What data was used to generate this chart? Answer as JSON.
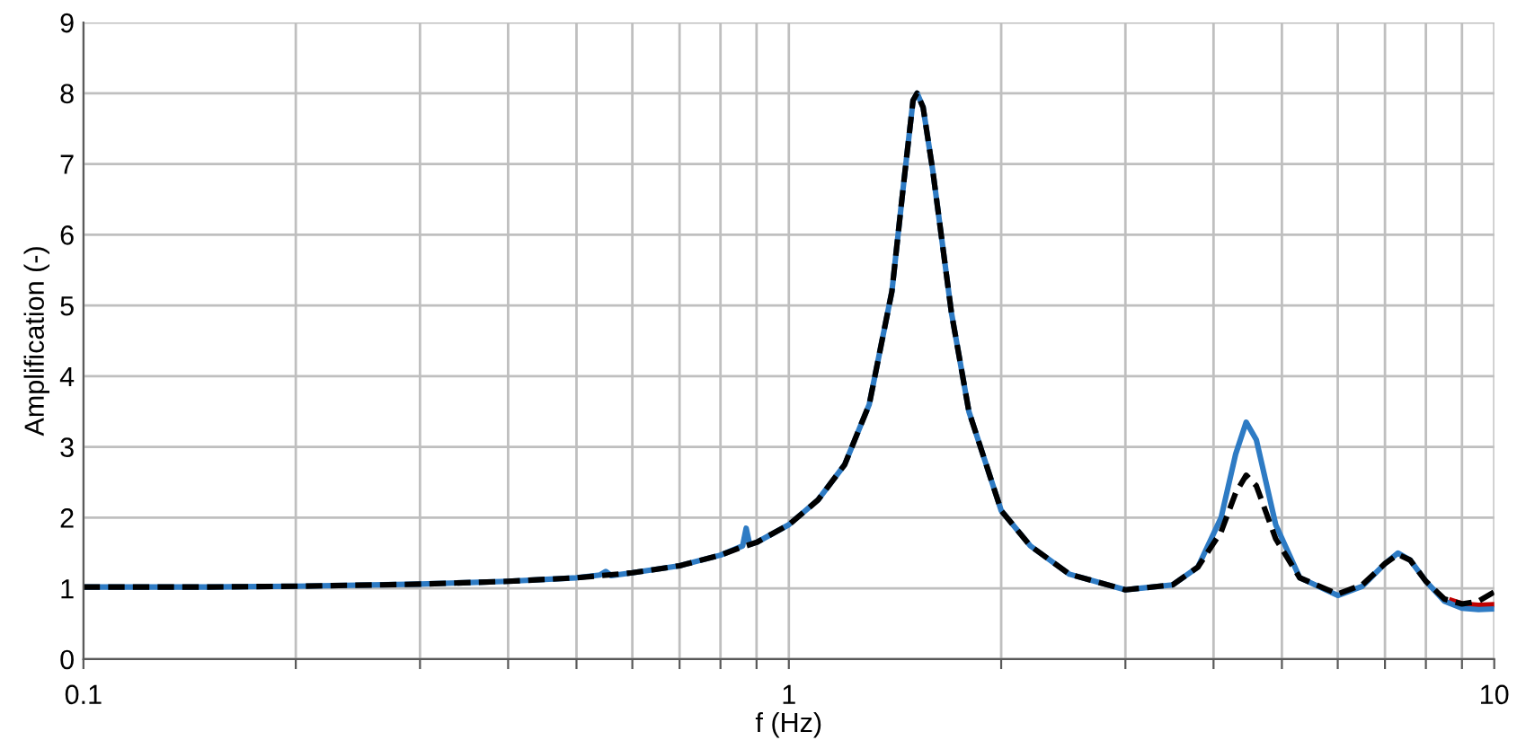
{
  "chart_data": {
    "type": "line",
    "xlabel": "f (Hz)",
    "ylabel": "Amplification (-)",
    "log": "x",
    "grid": true,
    "legend": false,
    "xlim": [
      0.1,
      10
    ],
    "xticks": [
      0.1,
      {
        "value": 0.2,
        "label": null
      },
      {
        "value": 0.3,
        "label": null
      },
      {
        "value": 0.4,
        "label": null
      },
      {
        "value": 0.5,
        "label": null
      },
      {
        "value": 0.6,
        "label": null
      },
      {
        "value": 0.7,
        "label": null
      },
      {
        "value": 0.8,
        "label": null
      },
      {
        "value": 0.9,
        "label": null
      },
      1,
      {
        "value": 2,
        "label": null
      },
      {
        "value": 3,
        "label": null
      },
      {
        "value": 4,
        "label": null
      },
      {
        "value": 5,
        "label": null
      },
      {
        "value": 6,
        "label": null
      },
      {
        "value": 7,
        "label": null
      },
      {
        "value": 8,
        "label": null
      },
      {
        "value": 9,
        "label": null
      },
      10
    ],
    "ylim": [
      0,
      9
    ],
    "yticks": [
      0,
      1,
      2,
      3,
      4,
      5,
      6,
      7,
      8,
      9
    ],
    "series": [
      {
        "color": "#c00000",
        "line_style": "solid",
        "x": [
          8.7,
          9.0,
          9.5,
          10
        ],
        "values": [
          0.83,
          0.78,
          0.76,
          0.77
        ]
      },
      {
        "color": "#2e7bc4",
        "line_style": "solid",
        "x": [
          0.1,
          0.15,
          0.2,
          0.3,
          0.4,
          0.5,
          0.54,
          0.55,
          0.56,
          0.6,
          0.7,
          0.8,
          0.86,
          0.87,
          0.88,
          0.9,
          1.0,
          1.1,
          1.2,
          1.3,
          1.4,
          1.45,
          1.5,
          1.52,
          1.55,
          1.6,
          1.7,
          1.8,
          2.0,
          2.2,
          2.5,
          3.0,
          3.5,
          3.8,
          4.1,
          4.3,
          4.45,
          4.6,
          4.9,
          5.3,
          6.0,
          6.5,
          7.0,
          7.3,
          7.6,
          8.0,
          8.5,
          9.0,
          9.5,
          10
        ],
        "values": [
          1.02,
          1.02,
          1.03,
          1.06,
          1.1,
          1.15,
          1.19,
          1.24,
          1.18,
          1.22,
          1.32,
          1.47,
          1.6,
          1.85,
          1.62,
          1.65,
          1.9,
          2.25,
          2.75,
          3.6,
          5.2,
          6.6,
          7.9,
          8.0,
          7.8,
          6.9,
          4.9,
          3.5,
          2.1,
          1.6,
          1.2,
          0.98,
          1.05,
          1.3,
          2.0,
          2.9,
          3.35,
          3.1,
          1.9,
          1.15,
          0.9,
          1.03,
          1.35,
          1.5,
          1.4,
          1.1,
          0.82,
          0.72,
          0.7,
          0.71
        ]
      },
      {
        "color": "#000000",
        "line_style": "dashed",
        "x": [
          0.1,
          0.15,
          0.2,
          0.3,
          0.4,
          0.5,
          0.6,
          0.7,
          0.8,
          0.85,
          0.9,
          1.0,
          1.1,
          1.2,
          1.3,
          1.4,
          1.45,
          1.5,
          1.52,
          1.55,
          1.6,
          1.7,
          1.8,
          2.0,
          2.2,
          2.5,
          3.0,
          3.5,
          3.8,
          4.1,
          4.3,
          4.45,
          4.6,
          4.9,
          5.3,
          6.0,
          6.5,
          7.0,
          7.3,
          7.6,
          8.0,
          8.5,
          9.0,
          9.5,
          10
        ],
        "values": [
          1.02,
          1.02,
          1.03,
          1.06,
          1.1,
          1.15,
          1.22,
          1.32,
          1.47,
          1.57,
          1.65,
          1.9,
          2.25,
          2.75,
          3.6,
          5.2,
          6.6,
          7.9,
          8.0,
          7.8,
          6.9,
          4.9,
          3.5,
          2.1,
          1.6,
          1.2,
          0.98,
          1.05,
          1.3,
          1.8,
          2.35,
          2.6,
          2.45,
          1.7,
          1.15,
          0.92,
          1.05,
          1.35,
          1.48,
          1.4,
          1.1,
          0.85,
          0.78,
          0.82,
          0.95
        ]
      }
    ]
  }
}
